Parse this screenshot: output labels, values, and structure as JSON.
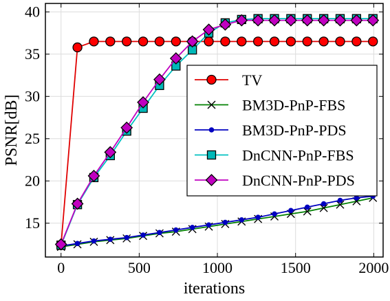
{
  "chart_data": {
    "type": "line",
    "xlabel": "iterations",
    "ylabel": "PSNR[dB]",
    "xlim": [
      -100,
      2060
    ],
    "ylim": [
      11,
      41
    ],
    "xticks": [
      0,
      500,
      1000,
      1500,
      2000
    ],
    "yticks": [
      15,
      20,
      25,
      30,
      35,
      40
    ],
    "grid": true,
    "legend_position": "center-right",
    "series": [
      {
        "name": "TV",
        "color": "#ff0000",
        "line_color": "#e00000",
        "marker": "circle",
        "x": [
          0,
          105,
          210,
          315,
          420,
          525,
          630,
          735,
          840,
          945,
          1050,
          1155,
          1260,
          1365,
          1470,
          1575,
          1680,
          1785,
          1890,
          1995
        ],
        "y": [
          12.4,
          35.8,
          36.5,
          36.5,
          36.5,
          36.5,
          36.5,
          36.5,
          36.5,
          36.5,
          36.5,
          36.5,
          36.5,
          36.5,
          36.5,
          36.5,
          36.5,
          36.5,
          36.5,
          36.5
        ]
      },
      {
        "name": "BM3D-PnP-FBS",
        "color": "#008000",
        "marker": "x",
        "x": [
          0,
          105,
          210,
          315,
          420,
          525,
          630,
          735,
          840,
          945,
          1050,
          1155,
          1260,
          1365,
          1470,
          1575,
          1680,
          1785,
          1890,
          1995
        ],
        "y": [
          12.2,
          12.5,
          12.8,
          13.0,
          13.2,
          13.5,
          13.8,
          14.0,
          14.3,
          14.6,
          14.9,
          15.2,
          15.5,
          15.8,
          16.1,
          16.4,
          16.8,
          17.2,
          17.6,
          18.0
        ]
      },
      {
        "name": "BM3D-PnP-PDS",
        "color": "#0000c0",
        "marker": "dot",
        "x": [
          0,
          105,
          210,
          315,
          420,
          525,
          630,
          735,
          840,
          945,
          1050,
          1155,
          1260,
          1365,
          1470,
          1575,
          1680,
          1785,
          1890,
          1995
        ],
        "y": [
          12.3,
          12.6,
          12.9,
          13.1,
          13.3,
          13.6,
          13.9,
          14.2,
          14.5,
          14.8,
          15.1,
          15.4,
          15.7,
          16.1,
          16.5,
          16.9,
          17.3,
          17.7,
          18.0,
          18.2
        ]
      },
      {
        "name": "DnCNN-PnP-FBS",
        "color": "#00b8b8",
        "line_color": "#00c0c0",
        "marker": "square",
        "x": [
          0,
          105,
          210,
          315,
          420,
          525,
          630,
          735,
          840,
          945,
          1050,
          1155,
          1260,
          1365,
          1470,
          1575,
          1680,
          1785,
          1890,
          1995
        ],
        "y": [
          12.4,
          17.2,
          20.4,
          23.0,
          25.9,
          28.6,
          31.3,
          33.6,
          35.5,
          37.5,
          38.7,
          39.1,
          39.2,
          39.2,
          39.2,
          39.2,
          39.2,
          39.2,
          39.2,
          39.2
        ]
      },
      {
        "name": "DnCNN-PnP-PDS",
        "color": "#c000c0",
        "marker": "diamond",
        "x": [
          0,
          105,
          210,
          315,
          420,
          525,
          630,
          735,
          840,
          945,
          1050,
          1155,
          1260,
          1365,
          1470,
          1575,
          1680,
          1785,
          1890,
          1995
        ],
        "y": [
          12.5,
          17.3,
          20.6,
          23.4,
          26.3,
          29.3,
          32.0,
          34.5,
          36.5,
          37.9,
          38.5,
          39.0,
          39.0,
          39.0,
          39.0,
          39.0,
          39.0,
          39.0,
          39.0,
          39.0
        ]
      }
    ]
  }
}
